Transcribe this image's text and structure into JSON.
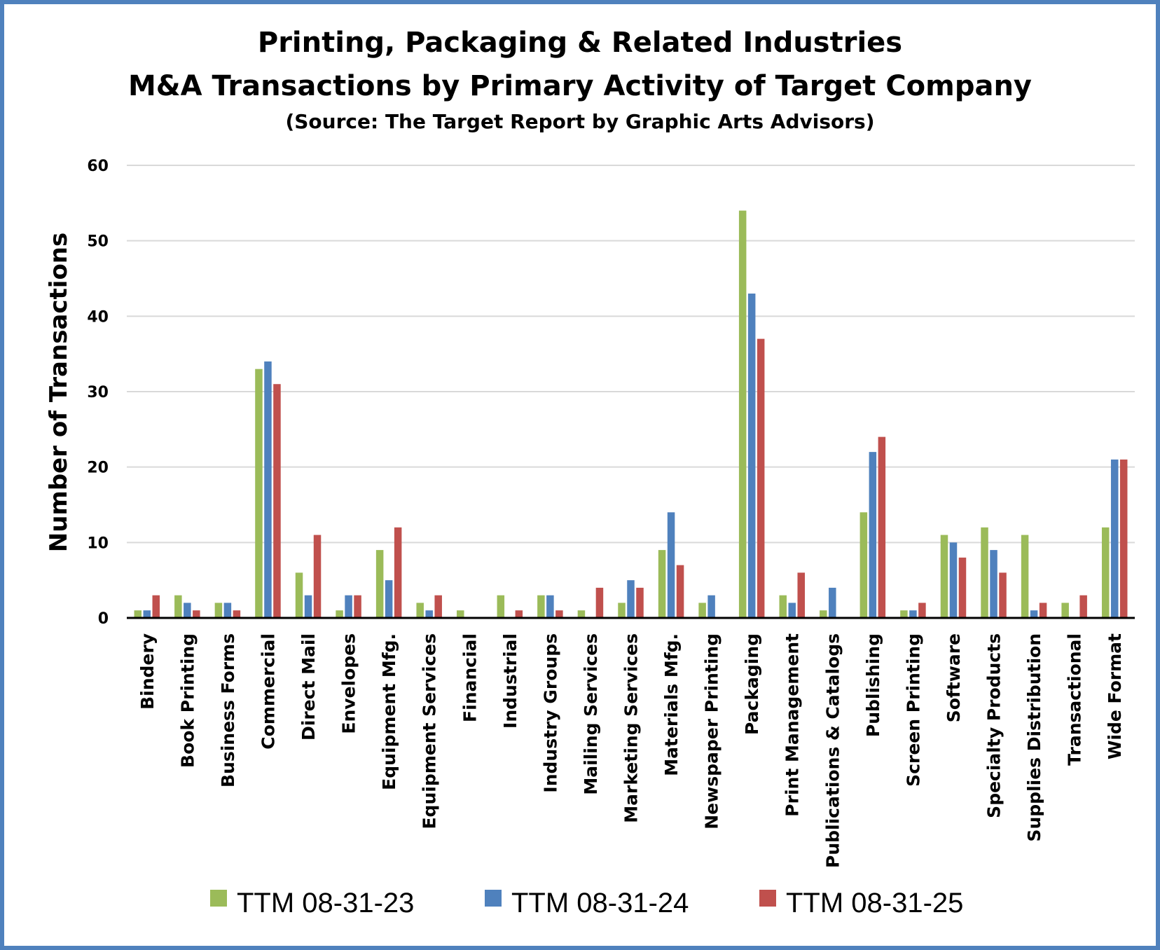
{
  "chart_data": {
    "type": "bar",
    "title": "Printing, Packaging & Related Industries",
    "subtitle": "M&A Transactions by Primary Activity of Target Company",
    "source": "(Source: The Target Report by Graphic Arts Advisors)",
    "xlabel": "",
    "ylabel": "Number of Transactions",
    "ylim": [
      0,
      60
    ],
    "yticks": [
      "0",
      "10",
      "20",
      "30",
      "40",
      "50",
      "60"
    ],
    "grid": true,
    "legend_position": "bottom",
    "categories": [
      "Bindery",
      "Book Printing",
      "Business Forms",
      "Commercial",
      "Direct Mail",
      "Envelopes",
      "Equipment Mfg.",
      "Equipment Services",
      "Financial",
      "Industrial",
      "Industry Groups",
      "Mailing Services",
      "Marketing Services",
      "Materials Mfg.",
      "Newspaper Printing",
      "Packaging",
      "Print Management",
      "Publications & Catalogs",
      "Publishing",
      "Screen Printing",
      "Software",
      "Specialty Products",
      "Supplies Distribution",
      "Transactional",
      "Wide Format"
    ],
    "series": [
      {
        "name": "TTM 08-31-23",
        "color": "#9bbb59",
        "values": [
          1,
          3,
          2,
          33,
          6,
          1,
          9,
          2,
          1,
          3,
          3,
          1,
          2,
          9,
          2,
          54,
          3,
          1,
          14,
          1,
          11,
          12,
          11,
          2,
          12
        ]
      },
      {
        "name": "TTM 08-31-24",
        "color": "#4f81bd",
        "values": [
          1,
          2,
          2,
          34,
          3,
          3,
          5,
          1,
          0,
          0,
          3,
          0,
          5,
          14,
          3,
          43,
          2,
          4,
          22,
          1,
          10,
          9,
          1,
          0,
          21
        ]
      },
      {
        "name": "TTM 08-31-25",
        "color": "#c0504d",
        "values": [
          3,
          1,
          1,
          31,
          11,
          3,
          12,
          3,
          0,
          1,
          1,
          4,
          4,
          7,
          0,
          37,
          6,
          0,
          24,
          2,
          8,
          6,
          2,
          3,
          21
        ]
      }
    ]
  }
}
